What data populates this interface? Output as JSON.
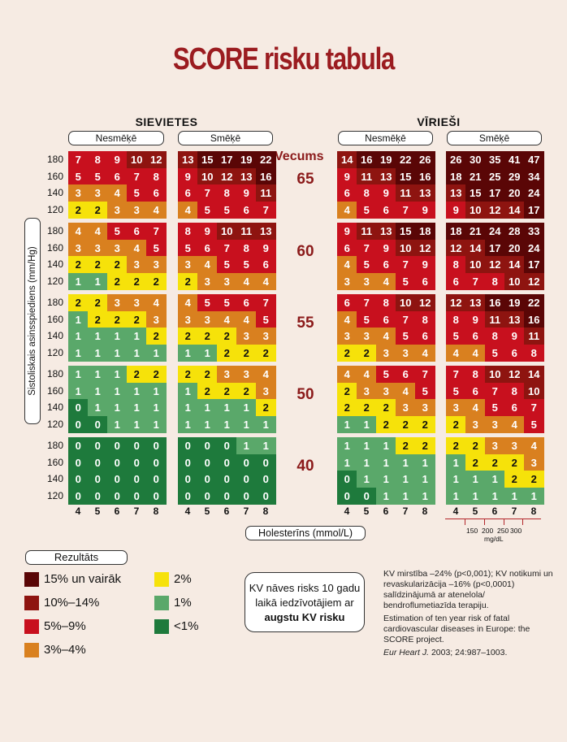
{
  "title": "SCORE risku tabula",
  "sexes": [
    {
      "label": "SIEVIETES",
      "groups": [
        "Nesmēķē",
        "Smēķē"
      ]
    },
    {
      "label": "VĪRIEŠI",
      "groups": [
        "Nesmēķē",
        "Smēķē"
      ]
    }
  ],
  "age_header": "Vecums",
  "y_axis_label": "Sistoliskais asinsspiediens (mm/Hg)",
  "x_axis_label": "Holesterīns (mmol/L)",
  "mg_dl_ticks": [
    "150",
    "200",
    "250",
    "300"
  ],
  "mg_dl_unit": "mg/dL",
  "legend": {
    "title": "Rezultāts",
    "items": [
      {
        "label": "15% un vairāk",
        "color": "#5a0606"
      },
      {
        "label": "10%–14%",
        "color": "#8e1410"
      },
      {
        "label": "5%–9%",
        "color": "#c8101e"
      },
      {
        "label": "3%–4%",
        "color": "#d9801f"
      },
      {
        "label": "2%",
        "color": "#f6e20a"
      },
      {
        "label": "1%",
        "color": "#5aa86a"
      },
      {
        "label": "<1%",
        "color": "#1e7a3c"
      }
    ]
  },
  "info_box": {
    "line1": "KV nāves risks 10 gadu",
    "line2": "laikā iedzīvotājiem ar",
    "line3": "augstu KV risku"
  },
  "reference": {
    "p1": "KV mirstība –24% (p<0,001); KV notikumi un revaskularizācija –16% (p<0,0001) salīdzinājumā ar atenelola/ bendroflumetiazīda terapiju.",
    "p2": "Estimation of ten year risk of fatal cardiovascular diseases in Europe: the SCORE project.",
    "p3_italic": "Eur Heart J.",
    "p3_rest": " 2003; 24:987–1003."
  },
  "chart_data": {
    "type": "heatmap",
    "title": "SCORE risku tabula",
    "xlabel": "Holesterīns (mmol/L)",
    "ylabel": "Sistoliskais asinsspiediens (mm/Hg)",
    "cholesterol": [
      "4",
      "5",
      "6",
      "7",
      "8"
    ],
    "blood_pressure": [
      "180",
      "160",
      "140",
      "120"
    ],
    "ages": [
      "65",
      "60",
      "55",
      "50",
      "40"
    ],
    "unit": "% 10-year fatal CVD risk",
    "panels": [
      {
        "sex": "SIEVIETES",
        "smoking": "Nesmēķē",
        "by_age": [
          [
            [
              7,
              8,
              9,
              10,
              12
            ],
            [
              5,
              5,
              6,
              7,
              8
            ],
            [
              3,
              3,
              4,
              5,
              6
            ],
            [
              2,
              2,
              3,
              3,
              4
            ]
          ],
          [
            [
              4,
              4,
              5,
              6,
              7
            ],
            [
              3,
              3,
              3,
              4,
              5
            ],
            [
              2,
              2,
              2,
              3,
              3
            ],
            [
              1,
              1,
              2,
              2,
              2
            ]
          ],
          [
            [
              2,
              2,
              3,
              3,
              4
            ],
            [
              1,
              2,
              2,
              2,
              3
            ],
            [
              1,
              1,
              1,
              1,
              2
            ],
            [
              1,
              1,
              1,
              1,
              1
            ]
          ],
          [
            [
              1,
              1,
              1,
              2,
              2
            ],
            [
              1,
              1,
              1,
              1,
              1
            ],
            [
              0,
              1,
              1,
              1,
              1
            ],
            [
              0,
              0,
              1,
              1,
              1
            ]
          ],
          [
            [
              0,
              0,
              0,
              0,
              0
            ],
            [
              0,
              0,
              0,
              0,
              0
            ],
            [
              0,
              0,
              0,
              0,
              0
            ],
            [
              0,
              0,
              0,
              0,
              0
            ]
          ]
        ]
      },
      {
        "sex": "SIEVIETES",
        "smoking": "Smēķē",
        "by_age": [
          [
            [
              13,
              15,
              17,
              19,
              22
            ],
            [
              9,
              10,
              12,
              13,
              16
            ],
            [
              6,
              7,
              8,
              9,
              11
            ],
            [
              4,
              5,
              5,
              6,
              7
            ]
          ],
          [
            [
              8,
              9,
              10,
              11,
              13
            ],
            [
              5,
              6,
              7,
              8,
              9
            ],
            [
              3,
              4,
              5,
              5,
              6
            ],
            [
              2,
              3,
              3,
              4,
              4
            ]
          ],
          [
            [
              4,
              5,
              5,
              6,
              7
            ],
            [
              3,
              3,
              4,
              4,
              5
            ],
            [
              2,
              2,
              2,
              3,
              3
            ],
            [
              1,
              1,
              2,
              2,
              2
            ]
          ],
          [
            [
              2,
              2,
              3,
              3,
              4
            ],
            [
              1,
              2,
              2,
              2,
              3
            ],
            [
              1,
              1,
              1,
              1,
              2
            ],
            [
              1,
              1,
              1,
              1,
              1
            ]
          ],
          [
            [
              0,
              0,
              0,
              1,
              1
            ],
            [
              0,
              0,
              0,
              0,
              0
            ],
            [
              0,
              0,
              0,
              0,
              0
            ],
            [
              0,
              0,
              0,
              0,
              0
            ]
          ]
        ]
      },
      {
        "sex": "VĪRIEŠI",
        "smoking": "Nesmēķē",
        "by_age": [
          [
            [
              14,
              16,
              19,
              22,
              26
            ],
            [
              9,
              11,
              13,
              15,
              16
            ],
            [
              6,
              8,
              9,
              11,
              13
            ],
            [
              4,
              5,
              6,
              7,
              9
            ]
          ],
          [
            [
              9,
              11,
              13,
              15,
              18
            ],
            [
              6,
              7,
              9,
              10,
              12
            ],
            [
              4,
              5,
              6,
              7,
              9
            ],
            [
              3,
              3,
              4,
              5,
              6
            ]
          ],
          [
            [
              6,
              7,
              8,
              10,
              12
            ],
            [
              4,
              5,
              6,
              7,
              8
            ],
            [
              3,
              3,
              4,
              5,
              6
            ],
            [
              2,
              2,
              3,
              3,
              4
            ]
          ],
          [
            [
              4,
              4,
              5,
              6,
              7
            ],
            [
              2,
              3,
              3,
              4,
              5
            ],
            [
              2,
              2,
              2,
              3,
              3
            ],
            [
              1,
              1,
              2,
              2,
              2
            ]
          ],
          [
            [
              1,
              1,
              1,
              2,
              2
            ],
            [
              1,
              1,
              1,
              1,
              1
            ],
            [
              0,
              1,
              1,
              1,
              1
            ],
            [
              0,
              0,
              1,
              1,
              1
            ]
          ]
        ]
      },
      {
        "sex": "VĪRIEŠI",
        "smoking": "Smēķē",
        "by_age": [
          [
            [
              26,
              30,
              35,
              41,
              47
            ],
            [
              18,
              21,
              25,
              29,
              34
            ],
            [
              13,
              15,
              17,
              20,
              24
            ],
            [
              9,
              10,
              12,
              14,
              17
            ]
          ],
          [
            [
              18,
              21,
              24,
              28,
              33
            ],
            [
              12,
              14,
              17,
              20,
              24
            ],
            [
              8,
              10,
              12,
              14,
              17
            ],
            [
              6,
              7,
              8,
              10,
              12
            ]
          ],
          [
            [
              12,
              13,
              16,
              19,
              22
            ],
            [
              8,
              9,
              11,
              13,
              16
            ],
            [
              5,
              6,
              8,
              9,
              11
            ],
            [
              4,
              4,
              5,
              6,
              8
            ]
          ],
          [
            [
              7,
              8,
              10,
              12,
              14
            ],
            [
              5,
              6,
              7,
              8,
              10
            ],
            [
              3,
              4,
              5,
              6,
              7
            ],
            [
              2,
              3,
              3,
              4,
              5
            ]
          ],
          [
            [
              2,
              2,
              3,
              3,
              4
            ],
            [
              1,
              2,
              2,
              2,
              3
            ],
            [
              1,
              1,
              1,
              2,
              2
            ],
            [
              1,
              1,
              1,
              1,
              1
            ]
          ]
        ]
      }
    ]
  }
}
